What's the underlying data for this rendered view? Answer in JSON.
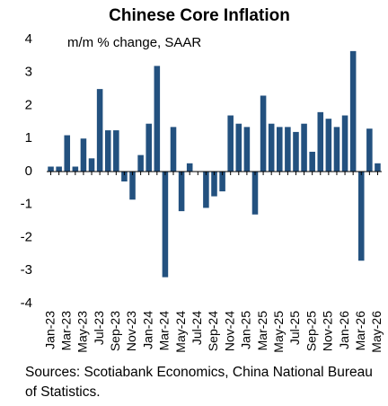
{
  "chart_data": {
    "type": "bar",
    "title": "Chinese Core Inflation",
    "subtitle": "m/m % change, SAAR",
    "source": "Sources: Scotiabank Economics, China National Bureau of Statistics.",
    "color": "#23517f",
    "categories": [
      "Jan-23",
      null,
      "Mar-23",
      null,
      "May-23",
      null,
      "Jul-23",
      null,
      "Sep-23",
      null,
      "Nov-23",
      null,
      "Jan-24",
      null,
      "Mar-24",
      null,
      "May-24",
      null,
      "Jul-24",
      null,
      "Sep-24",
      null,
      "Nov-24",
      null,
      "Jan-25",
      null,
      "Mar-25",
      null,
      "May-25",
      null,
      "Jul-25",
      null,
      "Sep-25",
      null,
      "Nov-25",
      null,
      "Jan-26",
      null,
      "Mar-26",
      null,
      "May-26"
    ],
    "values": [
      0.15,
      0.15,
      1.1,
      0.15,
      1.0,
      0.4,
      2.5,
      1.25,
      1.25,
      -0.3,
      -0.85,
      0.5,
      1.45,
      3.2,
      -3.2,
      1.35,
      -1.2,
      0.25,
      0,
      -1.1,
      -0.75,
      -0.6,
      1.7,
      1.45,
      1.35,
      -1.3,
      2.3,
      1.45,
      1.35,
      1.35,
      1.2,
      1.45,
      0.6,
      1.8,
      1.6,
      1.35,
      1.7,
      3.65,
      -2.7,
      1.3,
      0.25
    ],
    "ylim": [
      -4,
      4
    ],
    "yticks": [
      -4,
      -3,
      -2,
      -1,
      0,
      1,
      2,
      3,
      4
    ],
    "grid": false
  }
}
